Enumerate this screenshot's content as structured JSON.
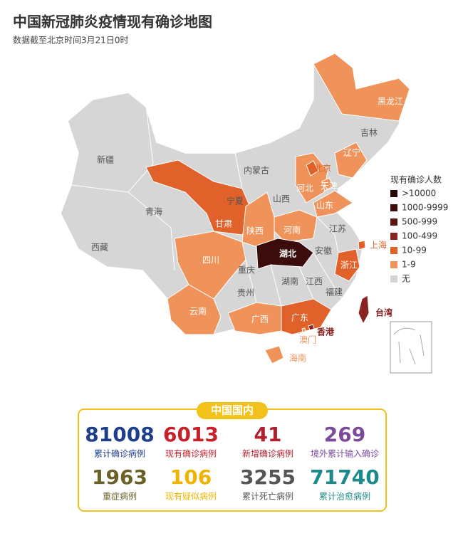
{
  "title": "中国新冠肺炎疫情现有确诊地图",
  "subtitle": "数据截至北京时间3月21日0时",
  "legend": {
    "title": "现有确诊人数",
    "items": [
      {
        "label": ">10000",
        "color": "#2a0808"
      },
      {
        "label": "1000-9999",
        "color": "#3c0b0b"
      },
      {
        "label": "500-999",
        "color": "#5a1410"
      },
      {
        "label": "100-499",
        "color": "#8a2222"
      },
      {
        "label": "10-99",
        "color": "#e0622a"
      },
      {
        "label": "1-9",
        "color": "#f0935a"
      },
      {
        "label": "无",
        "color": "#d6d6d6"
      }
    ]
  },
  "regions": [
    {
      "label": "新疆",
      "level": 6
    },
    {
      "label": "西藏",
      "level": 6
    },
    {
      "label": "青海",
      "level": 6
    },
    {
      "label": "甘肃",
      "level": 4
    },
    {
      "label": "内蒙古",
      "level": 6
    },
    {
      "label": "宁夏",
      "level": 6
    },
    {
      "label": "陕西",
      "level": 5
    },
    {
      "label": "山西",
      "level": 6
    },
    {
      "label": "河北",
      "level": 5
    },
    {
      "label": "北京",
      "level": 4
    },
    {
      "label": "天津",
      "level": 5
    },
    {
      "label": "辽宁",
      "level": 5
    },
    {
      "label": "吉林",
      "level": 6
    },
    {
      "label": "黑龙江",
      "level": 5
    },
    {
      "label": "山东",
      "level": 5
    },
    {
      "label": "河南",
      "level": 5
    },
    {
      "label": "江苏",
      "level": 6
    },
    {
      "label": "安徽",
      "level": 6
    },
    {
      "label": "上海",
      "level": 4
    },
    {
      "label": "浙江",
      "level": 4
    },
    {
      "label": "湖北",
      "level": 1
    },
    {
      "label": "四川",
      "level": 5
    },
    {
      "label": "重庆",
      "level": 6
    },
    {
      "label": "湖南",
      "level": 6
    },
    {
      "label": "江西",
      "level": 6
    },
    {
      "label": "福建",
      "level": 6
    },
    {
      "label": "贵州",
      "level": 6
    },
    {
      "label": "云南",
      "level": 5
    },
    {
      "label": "广西",
      "level": 5
    },
    {
      "label": "广东",
      "level": 4
    },
    {
      "label": "香港",
      "level": 3
    },
    {
      "label": "澳门",
      "level": 5
    },
    {
      "label": "海南",
      "level": 5
    },
    {
      "label": "台湾",
      "level": 3
    }
  ],
  "stats": {
    "title": "中国国内",
    "items": [
      {
        "value": "81008",
        "label": "累计确诊病例",
        "color": "#1d3f8b"
      },
      {
        "value": "6013",
        "label": "现有确诊病例",
        "color": "#c8202a"
      },
      {
        "value": "41",
        "label": "新增确诊病例",
        "color": "#b0202e"
      },
      {
        "value": "269",
        "label": "境外累计输入确诊",
        "color": "#7b4a9b"
      },
      {
        "value": "1963",
        "label": "重症病例",
        "color": "#6b6128"
      },
      {
        "value": "106",
        "label": "现有疑似病例",
        "color": "#f0b400"
      },
      {
        "value": "3255",
        "label": "累计死亡病例",
        "color": "#555555"
      },
      {
        "value": "71740",
        "label": "累计治愈病例",
        "color": "#1c8a8a"
      }
    ]
  }
}
